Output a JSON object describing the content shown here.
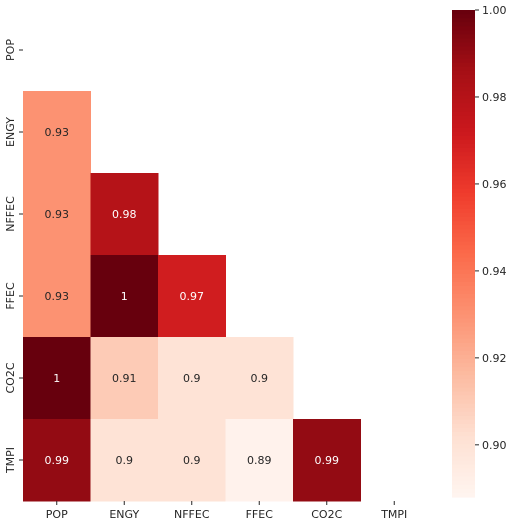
{
  "chart_data": {
    "type": "heatmap",
    "x_labels": [
      "POP",
      "ENGY",
      "NFFEC",
      "FFEC",
      "CO2C",
      "TMPI"
    ],
    "y_labels": [
      "POP",
      "ENGY",
      "NFFEC",
      "FFEC",
      "CO2C",
      "TMPI"
    ],
    "mask": "upper-triangle-including-diagonal",
    "cells": [
      {
        "row": "ENGY",
        "col": "POP",
        "value": 0.93,
        "label": "0.93"
      },
      {
        "row": "NFFEC",
        "col": "POP",
        "value": 0.93,
        "label": "0.93"
      },
      {
        "row": "NFFEC",
        "col": "ENGY",
        "value": 0.98,
        "label": "0.98"
      },
      {
        "row": "FFEC",
        "col": "POP",
        "value": 0.93,
        "label": "0.93"
      },
      {
        "row": "FFEC",
        "col": "ENGY",
        "value": 1.0,
        "label": "1"
      },
      {
        "row": "FFEC",
        "col": "NFFEC",
        "value": 0.97,
        "label": "0.97"
      },
      {
        "row": "CO2C",
        "col": "POP",
        "value": 1.0,
        "label": "1"
      },
      {
        "row": "CO2C",
        "col": "ENGY",
        "value": 0.91,
        "label": "0.91"
      },
      {
        "row": "CO2C",
        "col": "NFFEC",
        "value": 0.9,
        "label": "0.9"
      },
      {
        "row": "CO2C",
        "col": "FFEC",
        "value": 0.9,
        "label": "0.9"
      },
      {
        "row": "TMPI",
        "col": "POP",
        "value": 0.99,
        "label": "0.99"
      },
      {
        "row": "TMPI",
        "col": "ENGY",
        "value": 0.9,
        "label": "0.9"
      },
      {
        "row": "TMPI",
        "col": "NFFEC",
        "value": 0.9,
        "label": "0.9"
      },
      {
        "row": "TMPI",
        "col": "FFEC",
        "value": 0.89,
        "label": "0.89"
      },
      {
        "row": "TMPI",
        "col": "CO2C",
        "value": 0.99,
        "label": "0.99"
      }
    ],
    "colorscale": "Reds",
    "colorbar": {
      "range": [
        0.888,
        1.0
      ],
      "ticks": [
        "0.90",
        "0.92",
        "0.94",
        "0.96",
        "0.98",
        "1.00"
      ]
    }
  }
}
